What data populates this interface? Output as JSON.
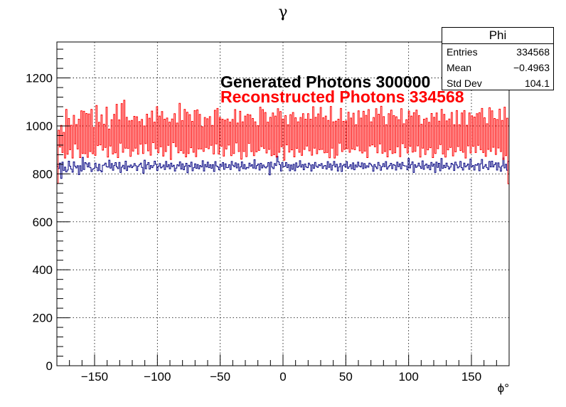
{
  "chart_data": {
    "type": "histogram",
    "title": "γ",
    "xlabel": "ϕ°",
    "ylabel": "",
    "xlim": [
      -180,
      180
    ],
    "ylim": [
      0,
      1350
    ],
    "x_ticks": [
      -150,
      -100,
      -50,
      0,
      50,
      100,
      150
    ],
    "y_ticks": [
      0,
      200,
      400,
      600,
      800,
      1000,
      1200
    ],
    "grid": true,
    "bins": 360,
    "series": [
      {
        "name": "Generated Photons 300000",
        "color": "#000080",
        "style": "step",
        "mean_level": 833,
        "values": [
          831,
          822,
          845,
          781,
          849,
          814,
          828,
          808,
          816,
          853,
          832,
          820,
          807,
          850,
          832,
          825,
          834,
          797,
          834,
          812,
          869,
          818,
          847,
          842,
          829,
          846,
          826,
          810,
          820,
          822,
          845,
          827,
          813,
          840,
          814,
          808,
          836,
          837,
          845,
          830,
          828,
          857,
          824,
          843,
          815,
          835,
          847,
          829,
          822,
          848,
          806,
          828,
          836,
          821,
          853,
          814,
          833,
          828,
          837,
          826,
          832,
          843,
          834,
          814,
          832,
          838,
          845,
          827,
          803,
          857,
          821,
          838,
          847,
          820,
          835,
          826,
          834,
          853,
          840,
          814,
          831,
          843,
          825,
          829,
          837,
          818,
          852,
          829,
          838,
          821,
          845,
          830,
          836,
          812,
          824,
          838,
          833,
          850,
          820,
          842,
          817,
          832,
          844,
          805,
          836,
          830,
          849,
          813,
          826,
          842,
          823,
          839,
          821,
          835,
          829,
          855,
          812,
          839,
          829,
          849,
          826,
          838,
          823,
          838,
          810,
          851,
          833,
          829,
          817,
          840,
          831,
          847,
          819,
          842,
          826,
          827,
          838,
          818,
          852,
          836,
          830,
          846,
          825,
          842,
          813,
          829,
          850,
          822,
          839,
          820,
          827,
          825,
          845,
          832,
          838,
          824,
          859,
          822,
          835,
          841,
          816,
          844,
          825,
          837,
          829,
          825,
          831,
          847,
          796,
          849,
          828,
          822,
          843,
          835,
          873,
          850,
          838,
          812,
          847,
          830,
          832,
          847,
          826,
          839,
          813,
          837,
          819,
          840,
          813,
          846,
          827,
          832,
          855,
          828,
          839,
          817,
          841,
          829,
          826,
          845,
          837,
          812,
          838,
          823,
          848,
          832,
          827,
          838,
          834,
          843,
          823,
          833,
          835,
          820,
          851,
          827,
          842,
          816,
          836,
          852,
          829,
          840,
          812,
          829,
          843,
          810,
          834,
          840,
          829,
          851,
          823,
          830,
          838,
          821,
          846,
          817,
          837,
          828,
          849,
          833,
          829,
          846,
          822,
          843,
          825,
          834,
          828,
          845,
          840,
          833,
          811,
          839,
          829,
          822,
          848,
          836,
          815,
          830,
          843,
          830,
          851,
          820,
          829,
          835,
          844,
          822,
          839,
          836,
          816,
          849,
          830,
          842,
          821,
          848,
          835,
          833,
          833,
          817,
          864,
          825,
          839,
          850,
          806,
          838,
          827,
          833,
          845,
          832,
          823,
          854,
          819,
          836,
          841,
          825,
          836,
          817,
          848,
          832,
          841,
          806,
          849,
          827,
          844,
          813,
          864,
          823,
          836,
          826,
          845,
          832,
          820,
          828,
          844,
          839,
          814,
          849,
          837,
          825,
          830,
          852,
          826,
          816,
          845,
          829,
          834,
          841,
          819,
          862,
          830,
          835,
          816,
          838,
          836,
          843,
          813,
          842,
          860,
          823,
          831,
          839,
          826,
          818,
          852,
          829,
          853,
          829,
          838,
          846,
          816,
          846,
          828,
          811,
          833,
          866,
          825,
          840,
          815,
          852
        ]
      },
      {
        "name": "Reconstructed Photons 334568",
        "color": "#ff0000",
        "style": "step",
        "mean_level": 929,
        "values": [
          760,
          982,
          912,
          1002,
          889,
          973,
          866,
          1069,
          882,
          1031,
          901,
          1003,
          866,
          1044,
          925,
          1006,
          904,
          1028,
          868,
          1063,
          885,
          1061,
          884,
          1052,
          869,
          1050,
          893,
          1069,
          884,
          994,
          877,
          1085,
          918,
          1015,
          921,
          1046,
          899,
          1007,
          910,
          1078,
          870,
          987,
          916,
          1026,
          883,
          1048,
          888,
          1090,
          868,
          1025,
          928,
          1093,
          890,
          1107,
          907,
          1036,
          906,
          1021,
          873,
          1023,
          895,
          1040,
          907,
          1038,
          882,
          1018,
          924,
          1027,
          885,
          1000,
          926,
          1049,
          896,
          1032,
          878,
          1062,
          930,
          1016,
          905,
          1080,
          888,
          1041,
          913,
          1060,
          874,
          1028,
          893,
          1033,
          919,
          1016,
          860,
          1029,
          930,
          1051,
          914,
          1012,
          888,
          1094,
          897,
          1022,
          886,
          1069,
          871,
          1057,
          885,
          1047,
          909,
          1019,
          890,
          1064,
          872,
          1067,
          904,
          1048,
          904,
          997,
          894,
          1035,
          910,
          1030,
          905,
          1039,
          919,
          1002,
          883,
          1065,
          925,
          1073,
          883,
          1035,
          915,
          1028,
          874,
          1024,
          904,
          1029,
          920,
          1016,
          876,
          1027,
          885,
          1068,
          929,
          1012,
          893,
          1061,
          861,
          1017,
          893,
          1041,
          872,
          1048,
          927,
          1046,
          893,
          1031,
          876,
          1017,
          892,
          1001,
          898,
          1078,
          914,
          1068,
          906,
          1056,
          887,
          1016,
          902,
          1036,
          876,
          1054,
          880,
          1041,
          870,
          1072,
          890,
          1060,
          913,
          1029,
          857,
          1043,
          921,
          1005,
          891,
          1047,
          900,
          1056,
          871,
          1034,
          906,
          1017,
          890,
          1035,
          877,
          1051,
          902,
          1028,
          916,
          1051,
          896,
          1028,
          878,
          1080,
          907,
          1036,
          884,
          1050,
          901,
          1077,
          902,
          1034,
          888,
          1041,
          889,
          1023,
          867,
          1081,
          907,
          1017,
          866,
          1020,
          878,
          1028,
          928,
          1073,
          893,
          1019,
          902,
          1021,
          905,
          1057,
          890,
          1033,
          904,
          1053,
          901,
          1005,
          916,
          1063,
          896,
          1033,
          887,
          1061,
          895,
          1044,
          868,
          1068,
          916,
          1017,
          921,
          1035,
          913,
          1072,
          888,
          1049,
          925,
          1082,
          886,
          1039,
          893,
          1005,
          871,
          1051,
          900,
          1066,
          885,
          1043,
          888,
          1038,
          913,
          1026,
          872,
          1072,
          926,
          1009,
          909,
          1026,
          887,
          1062,
          915,
          1041,
          891,
          1055,
          894,
          1066,
          917,
          1043,
          870,
          1007,
          907,
          1028,
          881,
          1032,
          900,
          1015,
          909,
          1052,
          868,
          1036,
          885,
          1054,
          905,
          1020,
          922,
          1069,
          883,
          1048,
          870,
          1021,
          900,
          1029,
          910,
          1056,
          875,
          1005,
          892,
          1064,
          914,
          1005,
          897,
          1054,
          890,
          1064,
          866,
          1003,
          917,
          1054,
          887,
          1042,
          915,
          1037,
          889,
          1051,
          919,
          1055,
          901,
          1073,
          889,
          1034,
          873,
          1009,
          902,
          1076,
          894,
          1063,
          911,
          1031,
          881,
          1027,
          908,
          1070,
          893,
          1023,
          860,
          1078,
          876,
          1032,
          759
        ]
      }
    ],
    "stats": {
      "name": "Phi",
      "rows": [
        {
          "label": "Entries",
          "value": "334568"
        },
        {
          "label": "Mean",
          "value": "−0.4963"
        },
        {
          "label": "Std Dev",
          "value": "104.1"
        }
      ]
    },
    "annotations": [
      {
        "text": "Generated Photons 300000",
        "color": "#000000"
      },
      {
        "text": "Reconstructed Photons 334568",
        "color": "#ff0000"
      }
    ]
  }
}
